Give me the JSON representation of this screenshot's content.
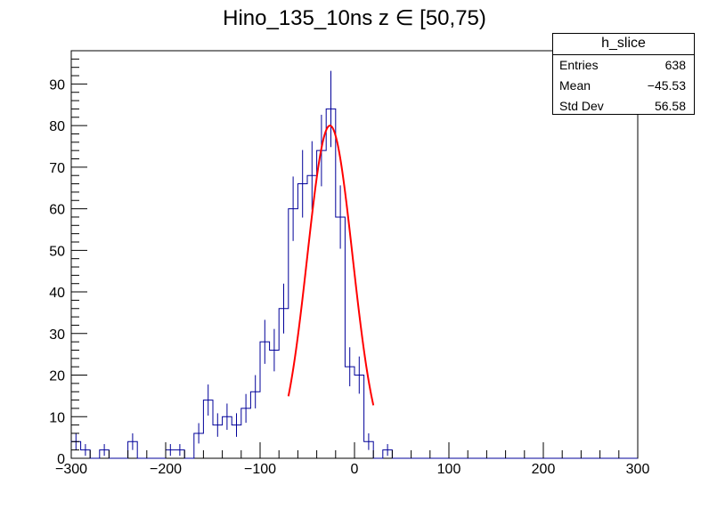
{
  "chart_data": {
    "type": "bar",
    "title": "Hino_135_10ns z  ∈ [50,75)",
    "xlabel": "",
    "ylabel": "",
    "xlim": [
      -300,
      300
    ],
    "ylim": [
      0,
      98
    ],
    "x_ticks": [
      -300,
      -200,
      -100,
      0,
      100,
      200,
      300
    ],
    "y_ticks": [
      0,
      10,
      20,
      30,
      40,
      50,
      60,
      70,
      80,
      90
    ],
    "bin_width": 10,
    "bin_edges_start": -300,
    "values": [
      4,
      2,
      0,
      2,
      0,
      0,
      4,
      0,
      0,
      0,
      2,
      2,
      0,
      6,
      14,
      8,
      10,
      8,
      12,
      16,
      28,
      26,
      36,
      60,
      66,
      68,
      74,
      84,
      58,
      22,
      20,
      4,
      0,
      2,
      0,
      0,
      0,
      0,
      0,
      0,
      0,
      0,
      0,
      0,
      0,
      0,
      0,
      0,
      0,
      0,
      0,
      0,
      0,
      0,
      0,
      0,
      0,
      0,
      0,
      0
    ],
    "histogram_color": "#000099",
    "fit": {
      "type": "gaussian",
      "amplitude": 80,
      "mean": -26,
      "sigma": 24,
      "range": [
        -70,
        20
      ],
      "color": "#ff0000"
    },
    "stats_box": {
      "name": "h_slice",
      "rows": [
        {
          "label": "Entries",
          "value": "638"
        },
        {
          "label": "Mean",
          "value": "−45.53"
        },
        {
          "label": "Std Dev",
          "value": "56.58"
        }
      ]
    },
    "x_tick_labels": [
      "−300",
      "−200",
      "−100",
      "0",
      "100",
      "200",
      "300"
    ],
    "y_tick_labels": [
      "0",
      "10",
      "20",
      "30",
      "40",
      "50",
      "60",
      "70",
      "80",
      "90"
    ]
  }
}
